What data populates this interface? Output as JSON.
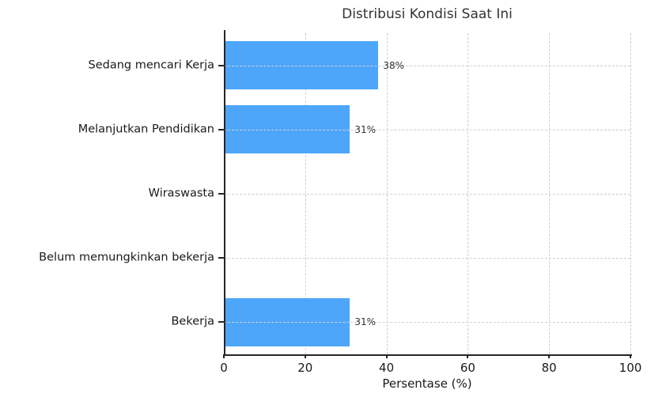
{
  "chart_data": {
    "type": "bar",
    "orientation": "horizontal",
    "title": "Distribusi Kondisi Saat Ini",
    "categories": [
      "Sedang mencari Kerja",
      "Melanjutkan Pendidikan",
      "Wiraswasta",
      "Belum memungkinkan bekerja",
      "Bekerja"
    ],
    "values": [
      38,
      31,
      0,
      0,
      31
    ],
    "value_labels": [
      "38%",
      "31%",
      "",
      "",
      "31%"
    ],
    "xlabel": "Persentase (%)",
    "ylabel": "",
    "xlim": [
      0,
      100
    ],
    "xticks": [
      0,
      20,
      40,
      60,
      80,
      100
    ],
    "grid": "dashed both axes",
    "legend": "none",
    "colors": {
      "bar": "#4DA6FA",
      "grid": "#cfcfcf",
      "spine": "#262626",
      "title_text": "#333333",
      "label_text": "#1a1a1a"
    }
  }
}
